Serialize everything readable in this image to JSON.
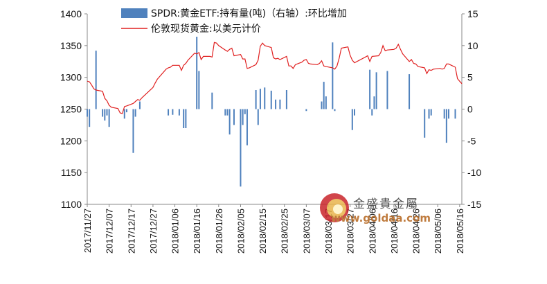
{
  "chart_data": {
    "type": "bar+line",
    "title": "",
    "legend": [
      {
        "name": "SPDR:黄金ETF:持有量(吨)（右轴）:环比增加",
        "type": "bar",
        "color": "#4f81bd"
      },
      {
        "name": "伦敦现货黄金:以美元计价",
        "type": "line",
        "color": "#e02020"
      }
    ],
    "legend_position": "top-center",
    "y_left": {
      "range": [
        1100,
        1400
      ],
      "ticks": [
        1100,
        1150,
        1200,
        1250,
        1300,
        1350,
        1400
      ]
    },
    "y_right": {
      "range": [
        -15,
        15
      ],
      "ticks": [
        -15,
        -10,
        -5,
        0,
        5,
        10,
        15
      ]
    },
    "x_range": [
      "2017-11-27",
      "2018-05-17"
    ],
    "x_tick_labels": [
      "2017/11/27",
      "2017/12/07",
      "2017/12/17",
      "2017/12/27",
      "2018/01/06",
      "2018/01/16",
      "2018/01/26",
      "2018/02/05",
      "2018/02/15",
      "2018/02/25",
      "2018/03/07",
      "2018/03/17",
      "2018/03/27",
      "2018/04/06",
      "2018/04/16",
      "2018/04/26",
      "2018/05/06",
      "2018/05/16"
    ],
    "grid": false,
    "series": [
      {
        "name": "伦敦现货黄金:以美元计价",
        "axis": "left",
        "points": [
          [
            "2017-11-27",
            1294
          ],
          [
            "2017-11-28",
            1293
          ],
          [
            "2017-11-29",
            1288
          ],
          [
            "2017-11-30",
            1282
          ],
          [
            "2017-12-01",
            1280
          ],
          [
            "2017-12-04",
            1278
          ],
          [
            "2017-12-05",
            1267
          ],
          [
            "2017-12-06",
            1263
          ],
          [
            "2017-12-07",
            1256
          ],
          [
            "2017-12-08",
            1253
          ],
          [
            "2017-12-11",
            1251
          ],
          [
            "2017-12-12",
            1244
          ],
          [
            "2017-12-13",
            1243
          ],
          [
            "2017-12-14",
            1254
          ],
          [
            "2017-12-15",
            1255
          ],
          [
            "2017-12-18",
            1259
          ],
          [
            "2017-12-19",
            1262
          ],
          [
            "2017-12-20",
            1265
          ],
          [
            "2017-12-21",
            1264
          ],
          [
            "2017-12-22",
            1268
          ],
          [
            "2017-12-27",
            1284
          ],
          [
            "2017-12-28",
            1291
          ],
          [
            "2017-12-29",
            1297
          ],
          [
            "2018-01-02",
            1313
          ],
          [
            "2018-01-03",
            1315
          ],
          [
            "2018-01-04",
            1316
          ],
          [
            "2018-01-05",
            1319
          ],
          [
            "2018-01-08",
            1319
          ],
          [
            "2018-01-09",
            1311
          ],
          [
            "2018-01-10",
            1319
          ],
          [
            "2018-01-11",
            1322
          ],
          [
            "2018-01-12",
            1327
          ],
          [
            "2018-01-15",
            1338
          ],
          [
            "2018-01-16",
            1337
          ],
          [
            "2018-01-17",
            1339
          ],
          [
            "2018-01-18",
            1328
          ],
          [
            "2018-01-19",
            1333
          ],
          [
            "2018-01-22",
            1333
          ],
          [
            "2018-01-23",
            1332
          ],
          [
            "2018-01-24",
            1355
          ],
          [
            "2018-01-25",
            1354
          ],
          [
            "2018-01-26",
            1350
          ],
          [
            "2018-01-29",
            1343
          ],
          [
            "2018-01-30",
            1341
          ],
          [
            "2018-01-31",
            1344
          ],
          [
            "2018-02-01",
            1346
          ],
          [
            "2018-02-02",
            1334
          ],
          [
            "2018-02-05",
            1336
          ],
          [
            "2018-02-06",
            1329
          ],
          [
            "2018-02-07",
            1329
          ],
          [
            "2018-02-08",
            1314
          ],
          [
            "2018-02-09",
            1315
          ],
          [
            "2018-02-12",
            1320
          ],
          [
            "2018-02-13",
            1327
          ],
          [
            "2018-02-14",
            1349
          ],
          [
            "2018-02-15",
            1354
          ],
          [
            "2018-02-16",
            1350
          ],
          [
            "2018-02-19",
            1347
          ],
          [
            "2018-02-20",
            1331
          ],
          [
            "2018-02-21",
            1329
          ],
          [
            "2018-02-22",
            1330
          ],
          [
            "2018-02-23",
            1328
          ],
          [
            "2018-02-26",
            1333
          ],
          [
            "2018-02-27",
            1318
          ],
          [
            "2018-02-28",
            1318
          ],
          [
            "2018-03-01",
            1314
          ],
          [
            "2018-03-02",
            1320
          ],
          [
            "2018-03-05",
            1324
          ],
          [
            "2018-03-06",
            1327
          ],
          [
            "2018-03-07",
            1328
          ],
          [
            "2018-03-08",
            1322
          ],
          [
            "2018-03-09",
            1321
          ],
          [
            "2018-03-12",
            1320
          ],
          [
            "2018-03-13",
            1322
          ],
          [
            "2018-03-14",
            1326
          ],
          [
            "2018-03-15",
            1318
          ],
          [
            "2018-03-16",
            1317
          ],
          [
            "2018-03-19",
            1315
          ],
          [
            "2018-03-20",
            1313
          ],
          [
            "2018-03-21",
            1318
          ],
          [
            "2018-03-22",
            1330
          ],
          [
            "2018-03-23",
            1346
          ],
          [
            "2018-03-26",
            1348
          ],
          [
            "2018-03-27",
            1335
          ],
          [
            "2018-03-28",
            1327
          ],
          [
            "2018-03-29",
            1323
          ],
          [
            "2018-04-03",
            1332
          ],
          [
            "2018-04-04",
            1334
          ],
          [
            "2018-04-05",
            1325
          ],
          [
            "2018-04-06",
            1333
          ],
          [
            "2018-04-09",
            1334
          ],
          [
            "2018-04-10",
            1339
          ],
          [
            "2018-04-11",
            1350
          ],
          [
            "2018-04-12",
            1342
          ],
          [
            "2018-04-13",
            1343
          ],
          [
            "2018-04-16",
            1344
          ],
          [
            "2018-04-17",
            1346
          ],
          [
            "2018-04-18",
            1352
          ],
          [
            "2018-04-19",
            1344
          ],
          [
            "2018-04-20",
            1337
          ],
          [
            "2018-04-23",
            1325
          ],
          [
            "2018-04-24",
            1328
          ],
          [
            "2018-04-25",
            1322
          ],
          [
            "2018-04-26",
            1321
          ],
          [
            "2018-04-27",
            1317
          ],
          [
            "2018-04-30",
            1315
          ],
          [
            "2018-05-01",
            1306
          ],
          [
            "2018-05-02",
            1312
          ],
          [
            "2018-05-03",
            1311
          ],
          [
            "2018-05-04",
            1313
          ],
          [
            "2018-05-07",
            1314
          ],
          [
            "2018-05-08",
            1313
          ],
          [
            "2018-05-09",
            1314
          ],
          [
            "2018-05-10",
            1321
          ],
          [
            "2018-05-11",
            1321
          ],
          [
            "2018-05-14",
            1316
          ],
          [
            "2018-05-15",
            1298
          ],
          [
            "2018-05-16",
            1294
          ],
          [
            "2018-05-17",
            1290
          ]
        ]
      },
      {
        "name": "SPDR:黄金ETF:持有量(吨)（右轴）:环比增加",
        "axis": "right",
        "points": [
          [
            "2017-11-27",
            -1.2
          ],
          [
            "2017-11-28",
            -2.8
          ],
          [
            "2017-12-01",
            9.2
          ],
          [
            "2017-12-04",
            -1.2
          ],
          [
            "2017-12-05",
            -1.8
          ],
          [
            "2017-12-06",
            -1.0
          ],
          [
            "2017-12-07",
            -2.8
          ],
          [
            "2017-12-14",
            -1.5
          ],
          [
            "2017-12-15",
            -0.5
          ],
          [
            "2017-12-18",
            -6.9
          ],
          [
            "2017-12-19",
            -1.2
          ],
          [
            "2017-12-21",
            1.2
          ],
          [
            "2018-01-03",
            -1.0
          ],
          [
            "2018-01-05",
            -0.9
          ],
          [
            "2018-01-08",
            -1.0
          ],
          [
            "2018-01-10",
            -3.0
          ],
          [
            "2018-01-11",
            -3.0
          ],
          [
            "2018-01-16",
            11.4
          ],
          [
            "2018-01-17",
            6.0
          ],
          [
            "2018-01-23",
            2.6
          ],
          [
            "2018-01-29",
            -1.0
          ],
          [
            "2018-01-30",
            -1.0
          ],
          [
            "2018-01-31",
            -4.0
          ],
          [
            "2018-02-02",
            -2.5
          ],
          [
            "2018-02-05",
            -12.2
          ],
          [
            "2018-02-06",
            -2.5
          ],
          [
            "2018-02-07",
            -0.8
          ],
          [
            "2018-02-08",
            -5.7
          ],
          [
            "2018-02-12",
            3.0
          ],
          [
            "2018-02-13",
            -2.5
          ],
          [
            "2018-02-14",
            3.2
          ],
          [
            "2018-02-16",
            3.4
          ],
          [
            "2018-02-19",
            2.9
          ],
          [
            "2018-02-21",
            1.5
          ],
          [
            "2018-02-23",
            1.5
          ],
          [
            "2018-02-26",
            3.0
          ],
          [
            "2018-03-07",
            -0.3
          ],
          [
            "2018-03-14",
            1.2
          ],
          [
            "2018-03-15",
            4.3
          ],
          [
            "2018-03-16",
            2.0
          ],
          [
            "2018-03-19",
            10.5
          ],
          [
            "2018-03-20",
            -0.3
          ],
          [
            "2018-03-28",
            -3.3
          ],
          [
            "2018-03-29",
            -1.0
          ],
          [
            "2018-04-05",
            6.2
          ],
          [
            "2018-04-06",
            -1.0
          ],
          [
            "2018-04-07",
            2.0
          ],
          [
            "2018-04-08",
            5.8
          ],
          [
            "2018-04-13",
            6.0
          ],
          [
            "2018-04-23",
            5.5
          ],
          [
            "2018-04-30",
            -4.5
          ],
          [
            "2018-05-02",
            -1.5
          ],
          [
            "2018-05-03",
            -1.0
          ],
          [
            "2018-05-09",
            -1.5
          ],
          [
            "2018-05-10",
            -5.3
          ],
          [
            "2018-05-11",
            -1.5
          ],
          [
            "2018-05-14",
            -1.5
          ]
        ]
      }
    ]
  },
  "watermark": {
    "text": "金盛貴金屬",
    "url": "www.goldaa.com"
  }
}
